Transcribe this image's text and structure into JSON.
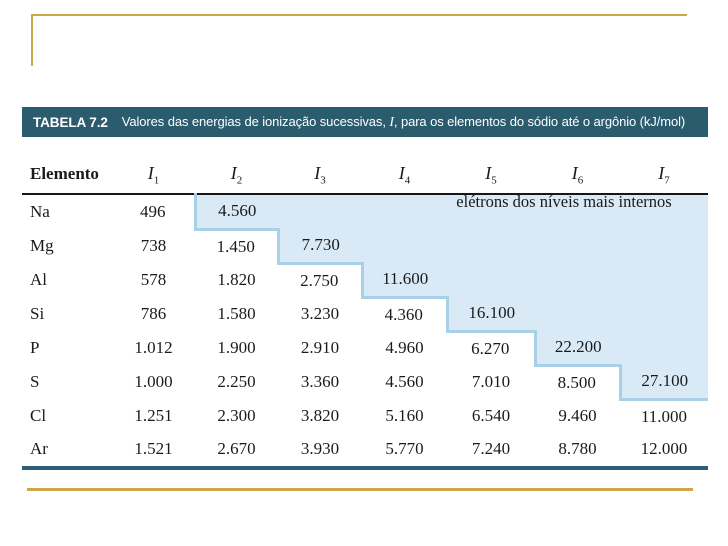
{
  "slide": {
    "background": "#FFFFFF",
    "accent_gold_corner": "#C9A94F",
    "accent_gold_bottom": "#CFA645"
  },
  "table_title": {
    "label": "TABELA 7.2",
    "text_pre": "Valores das energias de ionização sucessivas, ",
    "text_italic": "I",
    "text_post": ", para os elementos do sódio até o argônio (kJ/mol)"
  },
  "table": {
    "colors": {
      "title_bar_bg": "#2B5C6D",
      "title_bar_text": "#FFFFFF",
      "shaded_cell_bg": "#D9EAF6",
      "shaded_cell_border": "#A8D1E8",
      "header_rule": "#161616",
      "bottom_rule": "#2C6077"
    },
    "element_header": "Elemento",
    "ionization_headers": [
      {
        "symbol": "I",
        "sub": "1"
      },
      {
        "symbol": "I",
        "sub": "2"
      },
      {
        "symbol": "I",
        "sub": "3"
      },
      {
        "symbol": "I",
        "sub": "4"
      },
      {
        "symbol": "I",
        "sub": "5"
      },
      {
        "symbol": "I",
        "sub": "6"
      },
      {
        "symbol": "I",
        "sub": "7"
      }
    ],
    "annotation": "elétrons dos níveis mais internos",
    "rows": [
      {
        "element": "Na",
        "values": [
          "496",
          "4.560",
          "",
          "",
          "",
          "",
          ""
        ],
        "shade_from": 1
      },
      {
        "element": "Mg",
        "values": [
          "738",
          "1.450",
          "7.730",
          "",
          "",
          "",
          ""
        ],
        "shade_from": 2
      },
      {
        "element": "Al",
        "values": [
          "578",
          "1.820",
          "2.750",
          "11.600",
          "",
          "",
          ""
        ],
        "shade_from": 3
      },
      {
        "element": "Si",
        "values": [
          "786",
          "1.580",
          "3.230",
          "4.360",
          "16.100",
          "",
          ""
        ],
        "shade_from": 4
      },
      {
        "element": "P",
        "values": [
          "1.012",
          "1.900",
          "2.910",
          "4.960",
          "6.270",
          "22.200",
          ""
        ],
        "shade_from": 5
      },
      {
        "element": "S",
        "values": [
          "1.000",
          "2.250",
          "3.360",
          "4.560",
          "7.010",
          "8.500",
          "27.100"
        ],
        "shade_from": 6
      },
      {
        "element": "Cl",
        "values": [
          "1.251",
          "2.300",
          "3.820",
          "5.160",
          "6.540",
          "9.460",
          "11.000"
        ],
        "shade_from": null
      },
      {
        "element": "Ar",
        "values": [
          "1.521",
          "2.670",
          "3.930",
          "5.770",
          "7.240",
          "8.780",
          "12.000"
        ],
        "shade_from": null
      }
    ]
  }
}
